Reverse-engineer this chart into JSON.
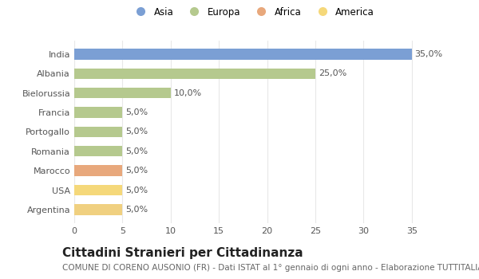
{
  "countries": [
    "India",
    "Albania",
    "Bielorussia",
    "Francia",
    "Portogallo",
    "Romania",
    "Marocco",
    "USA",
    "Argentina"
  ],
  "values": [
    35.0,
    25.0,
    10.0,
    5.0,
    5.0,
    5.0,
    5.0,
    5.0,
    5.0
  ],
  "labels": [
    "35,0%",
    "25,0%",
    "10,0%",
    "5,0%",
    "5,0%",
    "5,0%",
    "5,0%",
    "5,0%",
    "5,0%"
  ],
  "colors": [
    "#7b9fd4",
    "#b5c98e",
    "#b5c98e",
    "#b5c98e",
    "#b5c98e",
    "#b5c98e",
    "#e8a87c",
    "#f5d87a",
    "#f0d080"
  ],
  "legend_labels": [
    "Asia",
    "Europa",
    "Africa",
    "America"
  ],
  "legend_colors": [
    "#7b9fd4",
    "#b5c98e",
    "#e8a87c",
    "#f5d87a"
  ],
  "xlim": [
    0,
    37
  ],
  "xticks": [
    0,
    5,
    10,
    15,
    20,
    25,
    30,
    35
  ],
  "title": "Cittadini Stranieri per Cittadinanza",
  "subtitle": "COMUNE DI CORENO AUSONIO (FR) - Dati ISTAT al 1° gennaio di ogni anno - Elaborazione TUTTITALIA.IT",
  "bg_color": "#ffffff",
  "plot_bg_color": "#ffffff",
  "bar_height": 0.55,
  "grid_color": "#e8e8e8",
  "title_fontsize": 11,
  "subtitle_fontsize": 7.5,
  "label_fontsize": 8,
  "tick_fontsize": 8,
  "ytick_fontsize": 8
}
